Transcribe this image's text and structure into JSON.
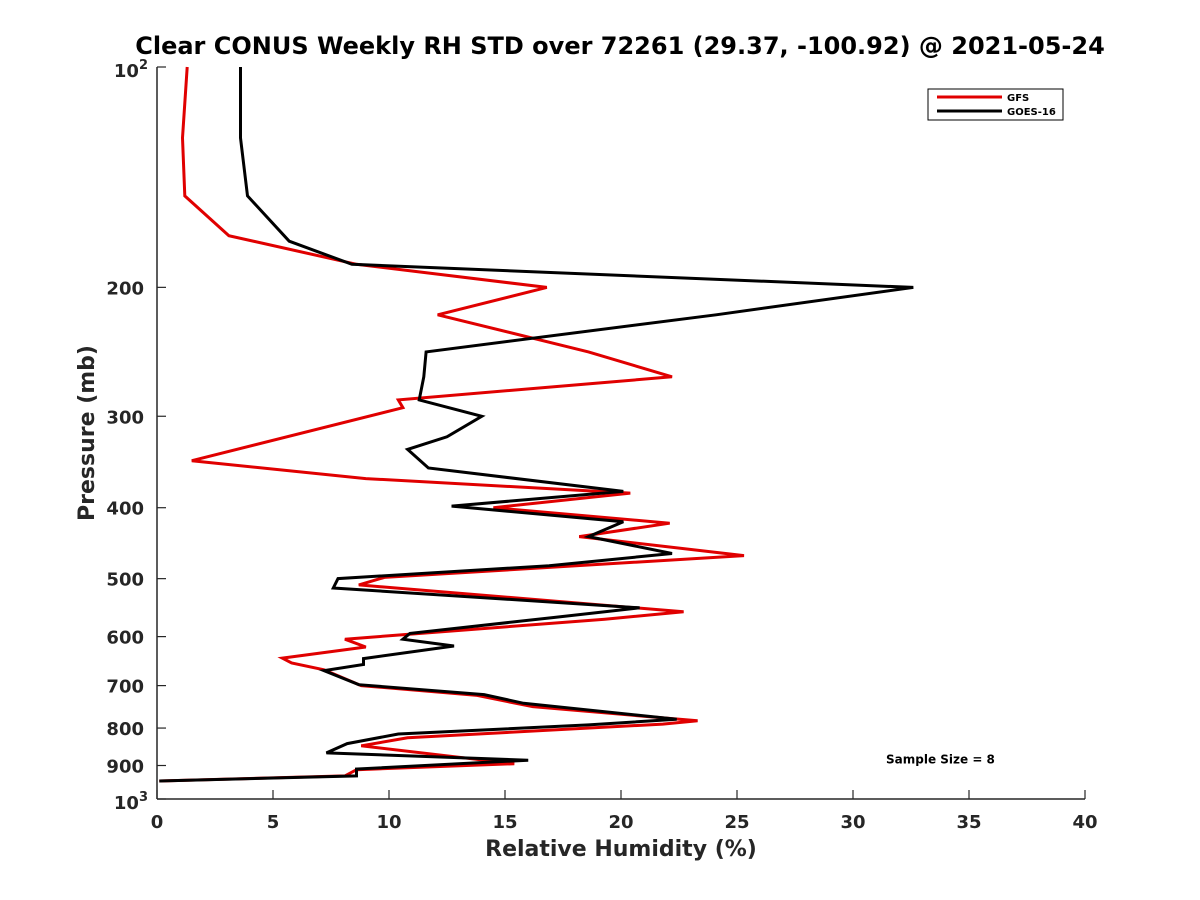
{
  "chart_data": {
    "type": "line",
    "title": "Clear CONUS Weekly RH STD over 72261 (29.37, -100.92) @ 2021-05-24",
    "xlabel": "Relative Humidity (%)",
    "ylabel": "Pressure (mb)",
    "xlim": [
      0,
      40
    ],
    "ylim": [
      100,
      1000
    ],
    "y_scale": "log",
    "y_reversed": true,
    "grid": false,
    "legend_position": "top-right",
    "x_ticks": [
      "0",
      "5",
      "10",
      "15",
      "20",
      "25",
      "30",
      "35",
      "40"
    ],
    "y_ticks": [
      {
        "value": 100,
        "base": "10",
        "exp": "2"
      },
      {
        "value": 200,
        "label": "200"
      },
      {
        "value": 300,
        "label": "300"
      },
      {
        "value": 400,
        "label": "400"
      },
      {
        "value": 500,
        "label": "500"
      },
      {
        "value": 600,
        "label": "600"
      },
      {
        "value": 700,
        "label": "700"
      },
      {
        "value": 800,
        "label": "800"
      },
      {
        "value": 900,
        "label": "900"
      },
      {
        "value": 1000,
        "base": "10",
        "exp": "3"
      }
    ],
    "series": [
      {
        "name": "GFS",
        "color": "#e00000",
        "points": [
          [
            1.3,
            100
          ],
          [
            1.1,
            125
          ],
          [
            1.2,
            150
          ],
          [
            3.1,
            170
          ],
          [
            8.6,
            186
          ],
          [
            16.8,
            200
          ],
          [
            12.1,
            218
          ],
          [
            18.6,
            245
          ],
          [
            22.2,
            265
          ],
          [
            10.4,
            285
          ],
          [
            10.6,
            292
          ],
          [
            1.5,
            345
          ],
          [
            9.0,
            365
          ],
          [
            20.4,
            382
          ],
          [
            14.5,
            400
          ],
          [
            22.1,
            420
          ],
          [
            18.2,
            438
          ],
          [
            25.3,
            465
          ],
          [
            9.8,
            498
          ],
          [
            8.7,
            510
          ],
          [
            22.7,
            555
          ],
          [
            19.3,
            568
          ],
          [
            8.1,
            605
          ],
          [
            9.0,
            620
          ],
          [
            5.4,
            642
          ],
          [
            5.8,
            652
          ],
          [
            7.2,
            666
          ],
          [
            8.8,
            700
          ],
          [
            13.8,
            722
          ],
          [
            16.2,
            748
          ],
          [
            23.3,
            782
          ],
          [
            21.8,
            790
          ],
          [
            10.8,
            825
          ],
          [
            8.8,
            846
          ],
          [
            15.4,
            895
          ],
          [
            8.6,
            912
          ],
          [
            8.1,
            930
          ],
          [
            0.1,
            945
          ]
        ]
      },
      {
        "name": "GOES-16",
        "color": "#000000",
        "points": [
          [
            3.6,
            100
          ],
          [
            3.6,
            125
          ],
          [
            3.9,
            150
          ],
          [
            5.7,
            173
          ],
          [
            8.4,
            186
          ],
          [
            32.6,
            200
          ],
          [
            24.1,
            218
          ],
          [
            11.6,
            245
          ],
          [
            11.5,
            265
          ],
          [
            11.3,
            285
          ],
          [
            14.0,
            300
          ],
          [
            12.5,
            320
          ],
          [
            10.8,
            333
          ],
          [
            11.7,
            353
          ],
          [
            20.1,
            380
          ],
          [
            12.7,
            398
          ],
          [
            20.1,
            418
          ],
          [
            18.6,
            438
          ],
          [
            22.2,
            462
          ],
          [
            16.9,
            480
          ],
          [
            7.8,
            500
          ],
          [
            7.6,
            515
          ],
          [
            20.8,
            548
          ],
          [
            17.1,
            565
          ],
          [
            10.9,
            594
          ],
          [
            10.6,
            605
          ],
          [
            12.8,
            618
          ],
          [
            8.9,
            643
          ],
          [
            8.9,
            655
          ],
          [
            7.2,
            668
          ],
          [
            8.7,
            698
          ],
          [
            14.1,
            720
          ],
          [
            15.8,
            740
          ],
          [
            22.4,
            778
          ],
          [
            18.6,
            792
          ],
          [
            10.4,
            815
          ],
          [
            8.2,
            840
          ],
          [
            7.3,
            865
          ],
          [
            16.0,
            885
          ],
          [
            8.6,
            910
          ],
          [
            8.6,
            930
          ],
          [
            0.1,
            945
          ]
        ]
      }
    ],
    "annotations": [
      {
        "text": "Sample Size = 8",
        "at_x": 35,
        "at_y": 880
      }
    ]
  }
}
